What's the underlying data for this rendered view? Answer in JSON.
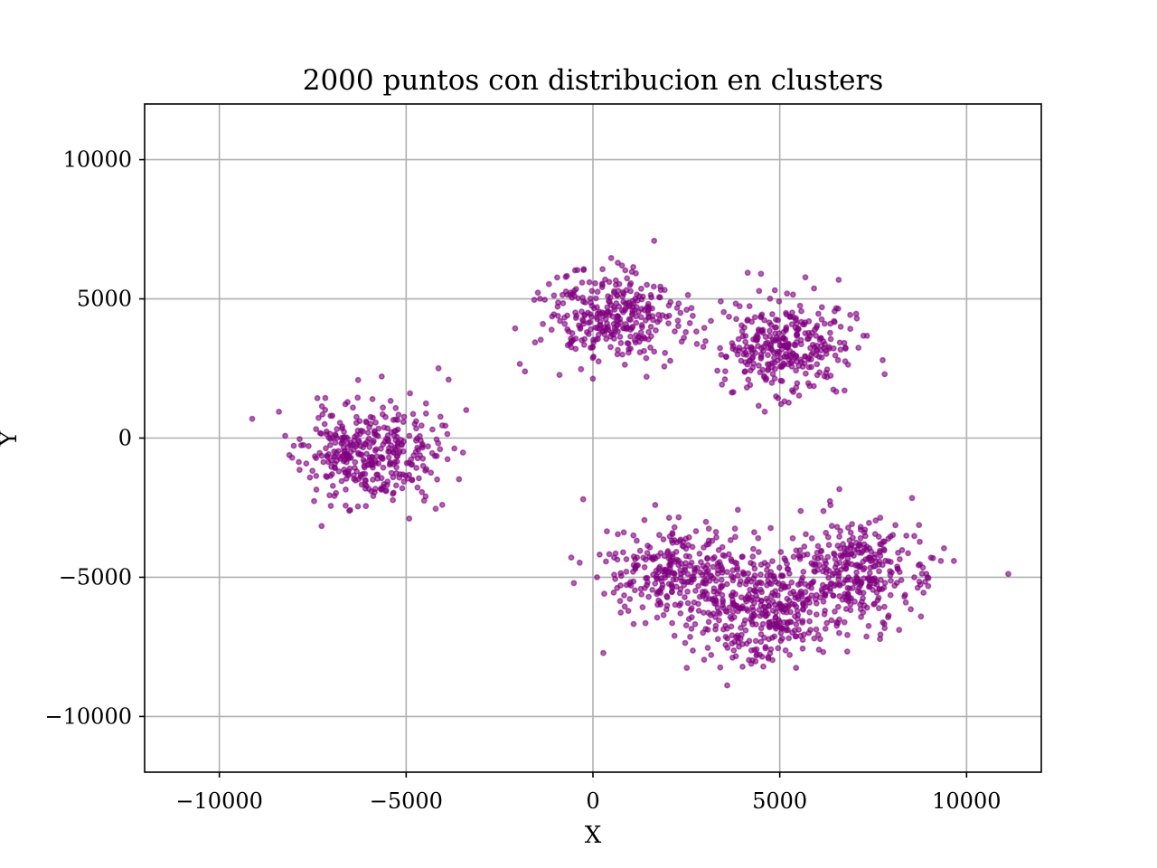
{
  "chart_data": {
    "type": "scatter",
    "title": "2000 puntos con distribucion en clusters",
    "xlabel": "X",
    "ylabel": "Y",
    "xlim": [
      -12000,
      12000
    ],
    "ylim": [
      -12000,
      12000
    ],
    "xticks": [
      -10000,
      -5000,
      0,
      5000,
      10000
    ],
    "yticks": [
      -10000,
      -5000,
      0,
      5000,
      10000
    ],
    "xtick_labels": [
      "−10000",
      "−5000",
      "0",
      "5000",
      "10000"
    ],
    "ytick_labels": [
      "−10000",
      "−5000",
      "0",
      "5000",
      "10000"
    ],
    "grid": true,
    "point_count": 2000,
    "marker_color": "#800080",
    "marker_alpha": 0.6,
    "clusters": [
      {
        "center": [
          -6000,
          -600
        ],
        "std": [
          900,
          900
        ],
        "count": 370,
        "seed": 11
      },
      {
        "center": [
          500,
          4300
        ],
        "std": [
          900,
          850
        ],
        "count": 320,
        "seed": 23
      },
      {
        "center": [
          5200,
          3300
        ],
        "std": [
          900,
          850
        ],
        "count": 330,
        "seed": 37
      },
      {
        "center": [
          2300,
          -4700
        ],
        "std": [
          1000,
          900
        ],
        "count": 300,
        "seed": 41
      },
      {
        "center": [
          4500,
          -6300
        ],
        "std": [
          1000,
          900
        ],
        "count": 350,
        "seed": 53
      },
      {
        "center": [
          7000,
          -4700
        ],
        "std": [
          1000,
          900
        ],
        "count": 330,
        "seed": 67
      }
    ]
  }
}
